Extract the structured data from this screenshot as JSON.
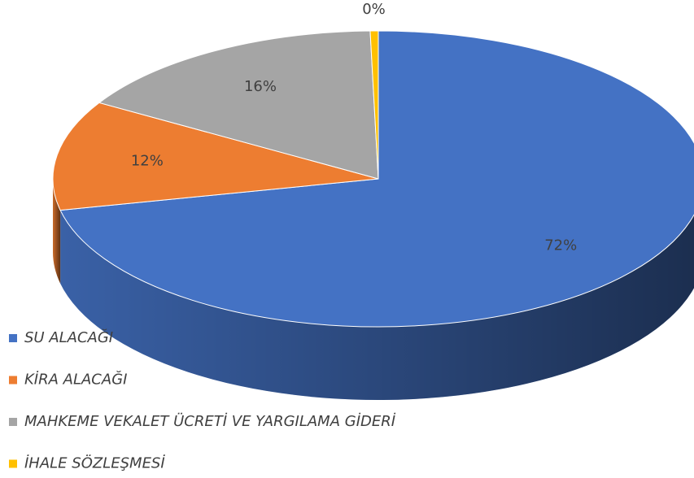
{
  "chart_data": {
    "type": "pie",
    "categories": [
      "SU ALACAĞI",
      "KİRA ALACAĞI",
      "MAHKEME VEKALET ÜCRETİ VE YARGILAMA GİDERİ",
      "İHALE SÖZLEŞMESİ"
    ],
    "values": [
      71.6,
      12,
      16,
      0.4
    ],
    "value_labels": [
      "72%",
      "12%",
      "16%",
      "0%"
    ],
    "colors": [
      "#4472c4",
      "#ed7d31",
      "#a5a5a5",
      "#ffc000"
    ],
    "legend": "bottom-left"
  }
}
